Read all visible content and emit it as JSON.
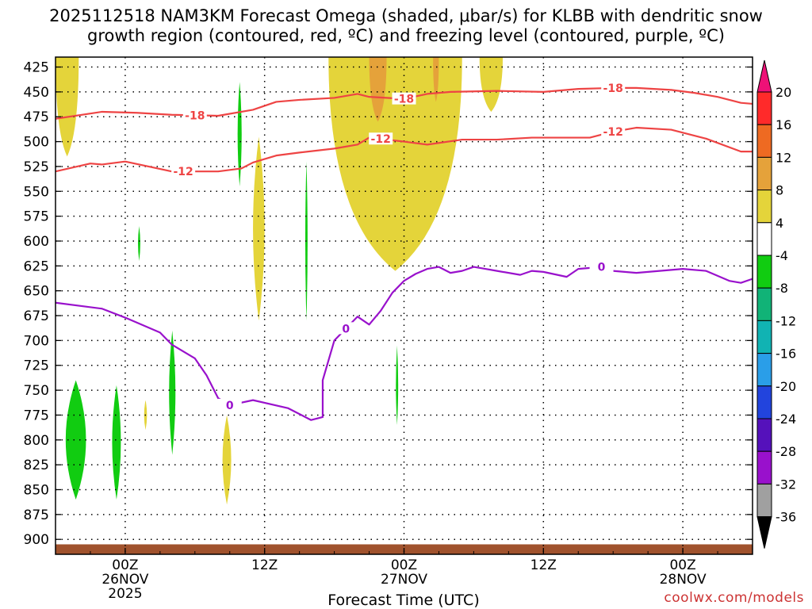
{
  "title_line1": "2025112518 NAM3KM Forecast Omega (shaded, μbar/s) for KLBB with dendritic snow",
  "title_line2": "growth region (contoured, red, ºC) and freezing level (contoured, purple, ºC)",
  "credit": "coolwx.com/models",
  "chart_data": {
    "type": "heatmap",
    "xlabel": "Forecast Time (UTC)",
    "ylabel": "",
    "x_range_hours_from_run": [
      0,
      60
    ],
    "x_ticks": [
      {
        "hour": 6,
        "label": "00Z",
        "sub1": "26NOV",
        "sub2": "2025"
      },
      {
        "hour": 18,
        "label": "12Z",
        "sub1": "",
        "sub2": ""
      },
      {
        "hour": 30,
        "label": "00Z",
        "sub1": "27NOV",
        "sub2": ""
      },
      {
        "hour": 42,
        "label": "12Z",
        "sub1": "",
        "sub2": ""
      },
      {
        "hour": 54,
        "label": "00Z",
        "sub1": "28NOV",
        "sub2": ""
      }
    ],
    "y_ticks": [
      425,
      450,
      475,
      500,
      525,
      550,
      575,
      600,
      625,
      650,
      675,
      700,
      725,
      750,
      775,
      800,
      825,
      850,
      875,
      900
    ],
    "y_range_mb": [
      415,
      915
    ],
    "grid": true,
    "colorbar": {
      "levels": [
        20,
        16,
        12,
        8,
        4,
        -4,
        -8,
        -12,
        -16,
        -20,
        -24,
        -28,
        -32,
        -36
      ],
      "colors": [
        "#ff2a2a",
        "#ee6a22",
        "#e5a23a",
        "#e4d43a",
        "#ffffff",
        "#11cc11",
        "#11b377",
        "#11b3b3",
        "#2a9ee8",
        "#2244dd",
        "#5511bb",
        "#9911cc",
        "#a0a0a0"
      ],
      "above_color": "#ee1177",
      "below_color": "#000000"
    },
    "omega_regions": [
      {
        "type": "positive",
        "class": "4-8",
        "hour_start": 0,
        "hour_end": 2,
        "top_mb": 415,
        "bottom_mb": 515
      },
      {
        "type": "positive",
        "class": "4-8",
        "hour_start": 23.5,
        "hour_end": 35,
        "top_mb": 415,
        "bottom_mb": 630
      },
      {
        "type": "positive",
        "class": "4-8",
        "hour_start": 36.5,
        "hour_end": 38.5,
        "top_mb": 415,
        "bottom_mb": 470
      },
      {
        "type": "positive",
        "class": "8-12",
        "hour_start": 27,
        "hour_end": 28.5,
        "top_mb": 415,
        "bottom_mb": 480
      },
      {
        "type": "positive",
        "class": "8-12",
        "hour_start": 32.5,
        "hour_end": 33,
        "top_mb": 415,
        "bottom_mb": 460
      },
      {
        "type": "positive",
        "class": "4-8",
        "hour_start": 16.5,
        "hour_end": 18.5,
        "top_mb": 495,
        "bottom_mb": 680
      },
      {
        "type": "positive",
        "class": "4-8",
        "hour_start": 14,
        "hour_end": 15.5,
        "top_mb": 775,
        "bottom_mb": 865
      },
      {
        "type": "positive",
        "class": "4-8",
        "hour_start": 7.5,
        "hour_end": 8,
        "top_mb": 760,
        "bottom_mb": 790
      },
      {
        "type": "negative",
        "class": "-4 to -8",
        "hour_start": 0,
        "hour_end": 3.5,
        "top_mb": 740,
        "bottom_mb": 860
      },
      {
        "type": "negative",
        "class": "-4 to -8",
        "hour_start": 4.5,
        "hour_end": 6,
        "top_mb": 745,
        "bottom_mb": 860
      },
      {
        "type": "negative",
        "class": "-4 to -8",
        "hour_start": 15.5,
        "hour_end": 16.2,
        "top_mb": 440,
        "bottom_mb": 545
      },
      {
        "type": "negative",
        "class": "-4 to -8",
        "hour_start": 7,
        "hour_end": 7.4,
        "top_mb": 585,
        "bottom_mb": 620
      },
      {
        "type": "negative",
        "class": "-4 to -8",
        "hour_start": 9.5,
        "hour_end": 10.6,
        "top_mb": 690,
        "bottom_mb": 815
      },
      {
        "type": "negative",
        "class": "-4 to -8",
        "hour_start": 21.4,
        "hour_end": 21.8,
        "top_mb": 520,
        "bottom_mb": 680
      },
      {
        "type": "negative",
        "class": "-4 to -8",
        "hour_start": 29.2,
        "hour_end": 29.6,
        "top_mb": 705,
        "bottom_mb": 785
      }
    ],
    "contours": [
      {
        "name": "-18",
        "color": "#ee4444",
        "points_hour_mb": [
          [
            0,
            477
          ],
          [
            4,
            470
          ],
          [
            7,
            471
          ],
          [
            10,
            473
          ],
          [
            14,
            474
          ],
          [
            17,
            468
          ],
          [
            19,
            460
          ],
          [
            21,
            458
          ],
          [
            24,
            456
          ],
          [
            26,
            452
          ],
          [
            27,
            455
          ],
          [
            30,
            457
          ],
          [
            32,
            452
          ],
          [
            34,
            450
          ],
          [
            38,
            449
          ],
          [
            42,
            450
          ],
          [
            45,
            447
          ],
          [
            48,
            446
          ],
          [
            50,
            446
          ],
          [
            53,
            448
          ],
          [
            55,
            451
          ],
          [
            57,
            455
          ],
          [
            59,
            461
          ],
          [
            60,
            462
          ]
        ],
        "label_hours": [
          12,
          30,
          48
        ]
      },
      {
        "name": "-12",
        "color": "#ee4444",
        "points_hour_mb": [
          [
            0,
            530
          ],
          [
            3,
            522
          ],
          [
            4,
            523
          ],
          [
            6,
            520
          ],
          [
            10,
            530
          ],
          [
            14,
            530
          ],
          [
            16,
            527
          ],
          [
            17,
            521
          ],
          [
            19,
            514
          ],
          [
            21,
            511
          ],
          [
            24,
            507
          ],
          [
            26,
            503
          ],
          [
            27,
            496
          ],
          [
            30,
            500
          ],
          [
            32,
            503
          ],
          [
            35,
            498
          ],
          [
            38,
            498
          ],
          [
            41,
            496
          ],
          [
            44,
            496
          ],
          [
            46,
            496
          ],
          [
            48,
            490
          ],
          [
            50,
            486
          ],
          [
            53,
            488
          ],
          [
            56,
            497
          ],
          [
            59,
            510
          ],
          [
            60,
            510
          ]
        ],
        "label_hours": [
          11,
          28,
          48
        ]
      },
      {
        "name": "0",
        "color": "#9911cc",
        "points_hour_mb": [
          [
            0,
            662
          ],
          [
            4,
            668
          ],
          [
            6,
            677
          ],
          [
            9,
            692
          ],
          [
            10,
            704
          ],
          [
            12,
            718
          ],
          [
            13,
            735
          ],
          [
            14,
            758
          ],
          [
            15,
            765
          ],
          [
            17,
            760
          ],
          [
            20,
            768
          ],
          [
            22,
            780
          ],
          [
            23,
            777
          ],
          [
            23,
            740
          ],
          [
            24,
            700
          ],
          [
            26,
            676
          ],
          [
            27,
            684
          ],
          [
            28,
            670
          ],
          [
            29,
            652
          ],
          [
            30,
            640
          ],
          [
            31,
            633
          ],
          [
            32,
            628
          ],
          [
            33,
            626
          ],
          [
            34,
            632
          ],
          [
            35,
            630
          ],
          [
            36,
            626
          ],
          [
            37,
            628
          ],
          [
            38,
            630
          ],
          [
            40,
            634
          ],
          [
            41,
            630
          ],
          [
            42,
            631
          ],
          [
            44,
            636
          ],
          [
            45,
            628
          ],
          [
            47,
            626
          ],
          [
            48,
            630
          ],
          [
            50,
            632
          ],
          [
            52,
            630
          ],
          [
            54,
            628
          ],
          [
            56,
            630
          ],
          [
            58,
            640
          ],
          [
            59,
            642
          ],
          [
            60,
            638
          ]
        ],
        "label_hours": [
          15,
          25,
          47
        ]
      }
    ],
    "ground_band_mb": [
      905,
      915
    ],
    "ground_color": "#a0522d"
  }
}
